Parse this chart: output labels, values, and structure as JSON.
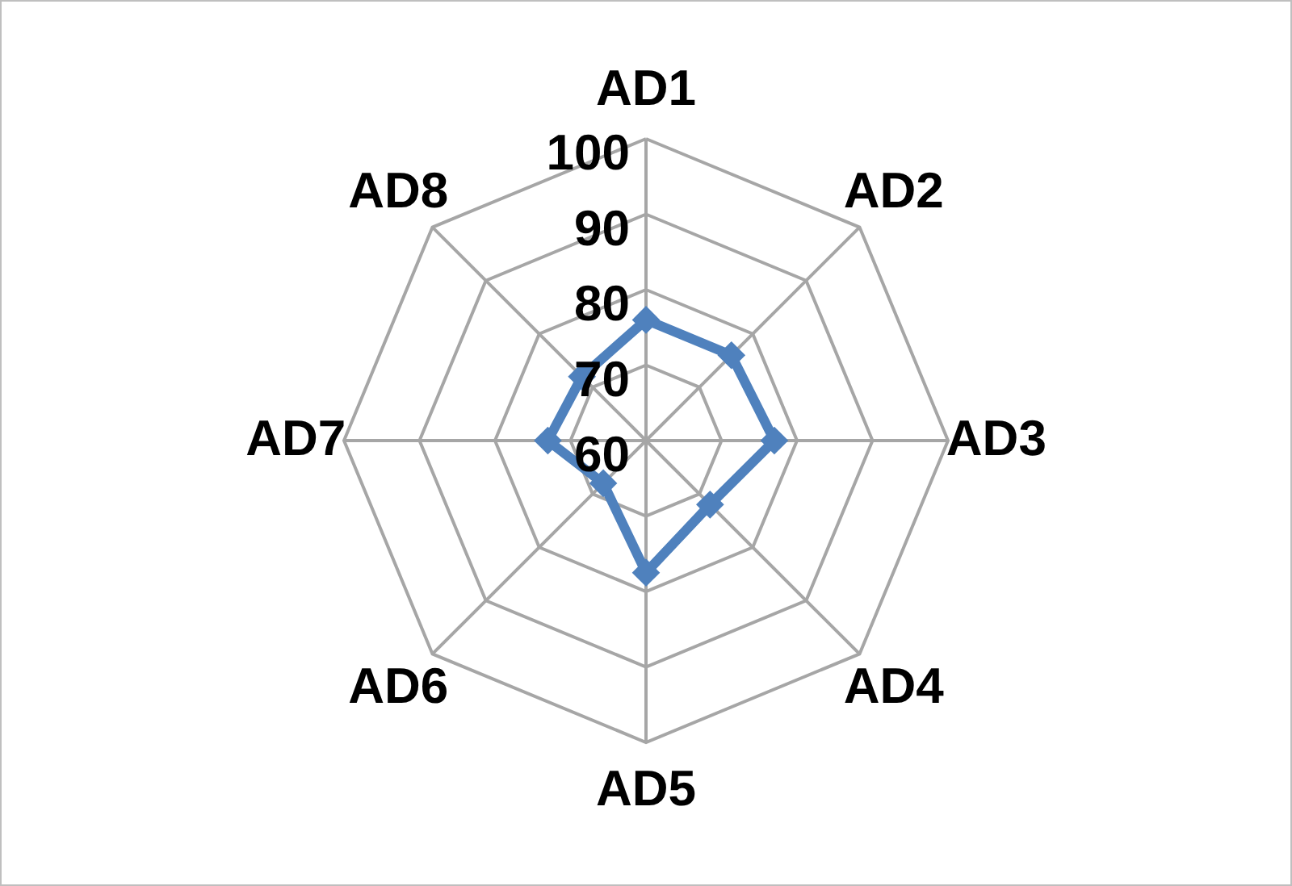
{
  "chart_data": {
    "type": "radar",
    "categories": [
      "AD1",
      "AD2",
      "AD3",
      "AD4",
      "AD5",
      "AD6",
      "AD7",
      "AD8"
    ],
    "series": [
      {
        "color": "#4f81bd",
        "values": [
          76,
          76,
          77,
          72,
          77.5,
          68,
          73,
          72
        ]
      }
    ],
    "ylim": [
      60,
      100
    ],
    "yticks": [
      60,
      70,
      80,
      90,
      100
    ],
    "grid": true,
    "marker": "diamond"
  }
}
